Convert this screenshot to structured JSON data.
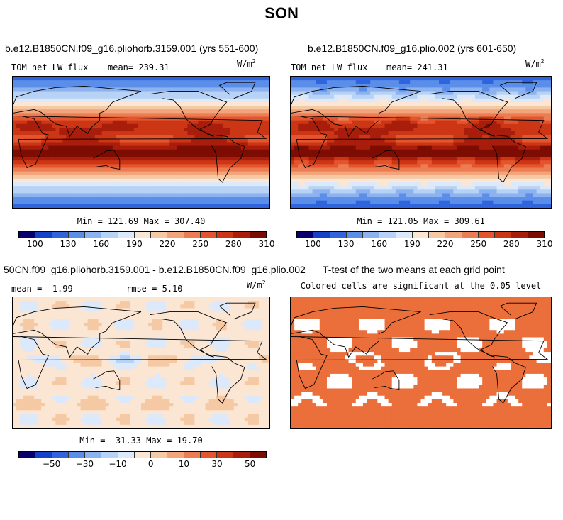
{
  "chart_data": [
    {
      "type": "heatmap",
      "page_title": "SON",
      "title": "b.e12.B1850CN.f09_g16.pliohorb.3159.001 (yrs 551-600)",
      "field": "TOM net LW flux",
      "mean_label": "mean=",
      "mean": "239.31",
      "units": "W/m",
      "units_exp": "2",
      "min_max": "Min = 121.69 Max = 307.40",
      "min": 121.69,
      "max": 307.4,
      "colorbar_ticks": [
        "100",
        "130",
        "160",
        "190",
        "220",
        "250",
        "280",
        "310"
      ],
      "levels": [
        100,
        115,
        130,
        145,
        160,
        175,
        190,
        205,
        220,
        235,
        250,
        265,
        280,
        295,
        310
      ]
    },
    {
      "type": "heatmap",
      "title": "b.e12.B1850CN.f09_g16.plio.002 (yrs 601-650)",
      "field": "TOM net LW flux",
      "mean_label": "mean=",
      "mean": "241.31",
      "units": "W/m",
      "units_exp": "2",
      "min_max": "Min = 121.05 Max = 309.61",
      "min": 121.05,
      "max": 309.61,
      "colorbar_ticks": [
        "100",
        "130",
        "160",
        "190",
        "220",
        "250",
        "280",
        "310"
      ],
      "levels": [
        100,
        115,
        130,
        145,
        160,
        175,
        190,
        205,
        220,
        235,
        250,
        265,
        280,
        295,
        310
      ]
    },
    {
      "type": "heatmap",
      "title": "50CN.f09_g16.pliohorb.3159.001 - b.e12.B1850CN.f09_g16.plio.002",
      "mean_label": "mean =",
      "mean": "-1.99",
      "rmse_label": "rmse =",
      "rmse": "5.10",
      "units": "W/m",
      "units_exp": "2",
      "min_max": "Min = -31.33 Max =  19.70",
      "min": -31.33,
      "max": 19.7,
      "colorbar_ticks": [
        "−50",
        "−30",
        "−10",
        "0",
        "10",
        "30",
        "50"
      ],
      "levels": [
        -60,
        -50,
        -40,
        -30,
        -20,
        -10,
        -5,
        0,
        5,
        10,
        20,
        30,
        40,
        50,
        60
      ]
    },
    {
      "type": "heatmap",
      "title": "T-test of the two means at each grid point",
      "subtitle": "Colored cells are significant at the 0.05 level",
      "significance_level": 0.05
    }
  ],
  "colors": {
    "scale": [
      "#08006b",
      "#1540c8",
      "#2f64dd",
      "#5b8ee8",
      "#8cb3ef",
      "#b7d2f5",
      "#dce9fb",
      "#fbe6d4",
      "#f6c9a5",
      "#f2a47a",
      "#ec7c52",
      "#e4552e",
      "#cd3615",
      "#a81d0b",
      "#7d0c03"
    ],
    "significant": "#eb6f3a",
    "land_outline": "#000000"
  }
}
